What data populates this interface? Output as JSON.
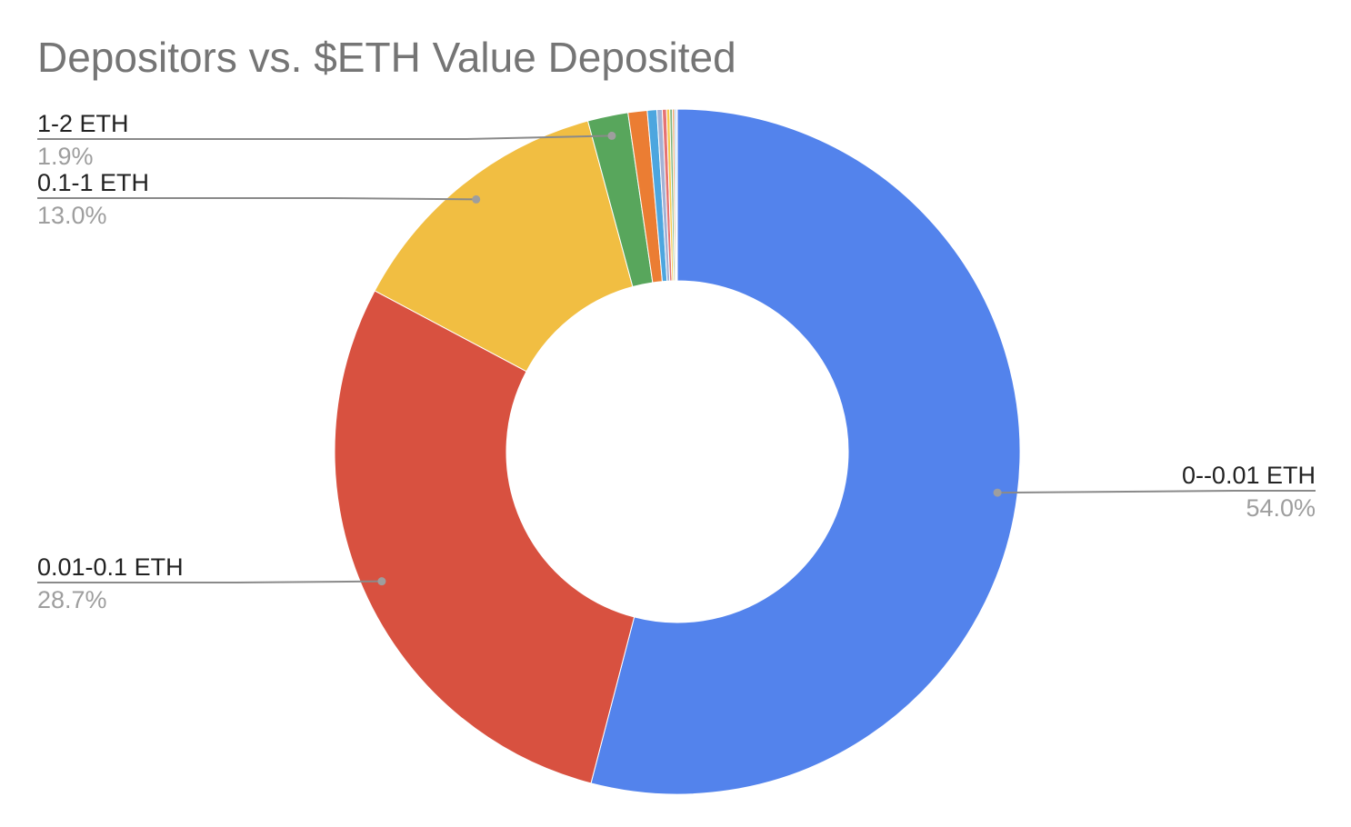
{
  "chart_data": {
    "type": "pie",
    "title": "Depositors vs. $ETH Value Deposited",
    "donut": true,
    "legend": "none",
    "slices": [
      {
        "label": "0--0.01 ETH",
        "value": 54.0,
        "value_label": "54.0%",
        "color": "#5383EC",
        "labeled": true,
        "label_side": "right"
      },
      {
        "label": "0.01-0.1 ETH",
        "value": 28.7,
        "value_label": "28.7%",
        "color": "#D85140",
        "labeled": true,
        "label_side": "left"
      },
      {
        "label": "0.1-1 ETH",
        "value": 13.0,
        "value_label": "13.0%",
        "color": "#F1BE42",
        "labeled": true,
        "label_side": "left"
      },
      {
        "label": "1-2 ETH",
        "value": 1.9,
        "value_label": "1.9%",
        "color": "#58A65C",
        "labeled": true,
        "label_side": "left"
      },
      {
        "label": "",
        "value": 0.9,
        "value_label": "",
        "color": "#EB7D33",
        "labeled": false
      },
      {
        "label": "",
        "value": 0.45,
        "value_label": "",
        "color": "#4DA6DF",
        "labeled": false
      },
      {
        "label": "",
        "value": 0.25,
        "value_label": "",
        "color": "#A4B1D4",
        "labeled": false
      },
      {
        "label": "",
        "value": 0.2,
        "value_label": "",
        "color": "#E57373",
        "labeled": false
      },
      {
        "label": "",
        "value": 0.15,
        "value_label": "",
        "color": "#F6CB4F",
        "labeled": false
      },
      {
        "label": "",
        "value": 0.12,
        "value_label": "",
        "color": "#7AB47D",
        "labeled": false
      },
      {
        "label": "",
        "value": 0.1,
        "value_label": "",
        "color": "#F0A064",
        "labeled": false
      },
      {
        "label": "",
        "value": 0.08,
        "value_label": "",
        "color": "#86C4EE",
        "labeled": false
      },
      {
        "label": "",
        "value": 0.05,
        "value_label": "",
        "color": "#C9A6D6",
        "labeled": false
      }
    ]
  }
}
